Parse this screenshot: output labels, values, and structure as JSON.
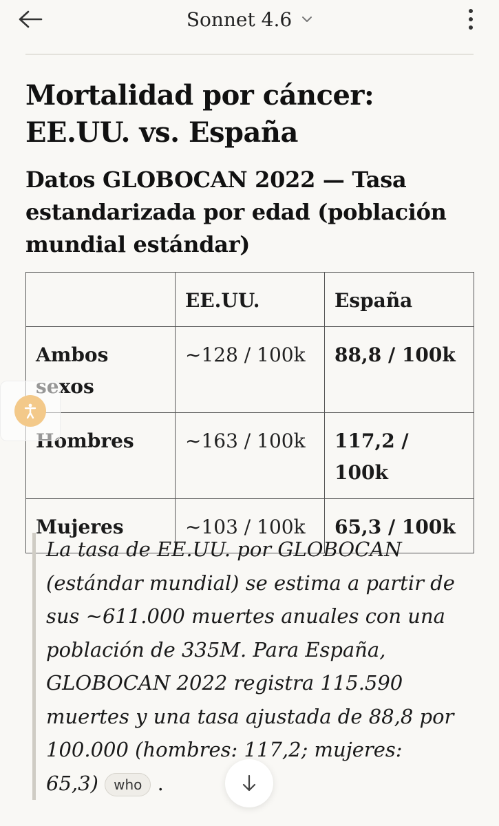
{
  "header": {
    "model_name": "Sonnet 4.6"
  },
  "article": {
    "title": "Mortalidad por cáncer: EE.UU. vs. España",
    "subtitle": "Datos GLOBOCAN 2022 — Tasa estandarizada por edad (población mundial estándar)"
  },
  "table": {
    "headers": [
      "",
      "EE.UU.",
      "España"
    ],
    "rows": [
      {
        "label": "Ambos sexos",
        "us": "~128 / 100k",
        "es": "88,8 / 100k"
      },
      {
        "label": "Hombres",
        "us": "~163 / 100k",
        "es": "117,2 / 100k"
      },
      {
        "label": "Mujeres",
        "us": "~103 / 100k",
        "es": "65,3 / 100k"
      }
    ]
  },
  "note": {
    "text": "La tasa de EE.UU. por GLOBOCAN (estándar mundial) se estima a partir de sus ~611.000 muertes anuales con una población de 335M. Para España, GLOBOCAN 2022 registra 115.590 muertes y una tasa ajustada de 88,8 por 100.000 (hombres: 117,2; mujeres: 65,3)",
    "citation": "who",
    "trailing": "."
  },
  "icons": {
    "back": "arrow-left-icon",
    "dropdown": "chevron-down-icon",
    "menu": "more-vertical-icon",
    "accessibility": "accessibility-icon",
    "scroll_down": "arrow-down-icon"
  },
  "colors": {
    "background": "#f9f8f5",
    "accessibility_accent": "#f3c98a"
  }
}
